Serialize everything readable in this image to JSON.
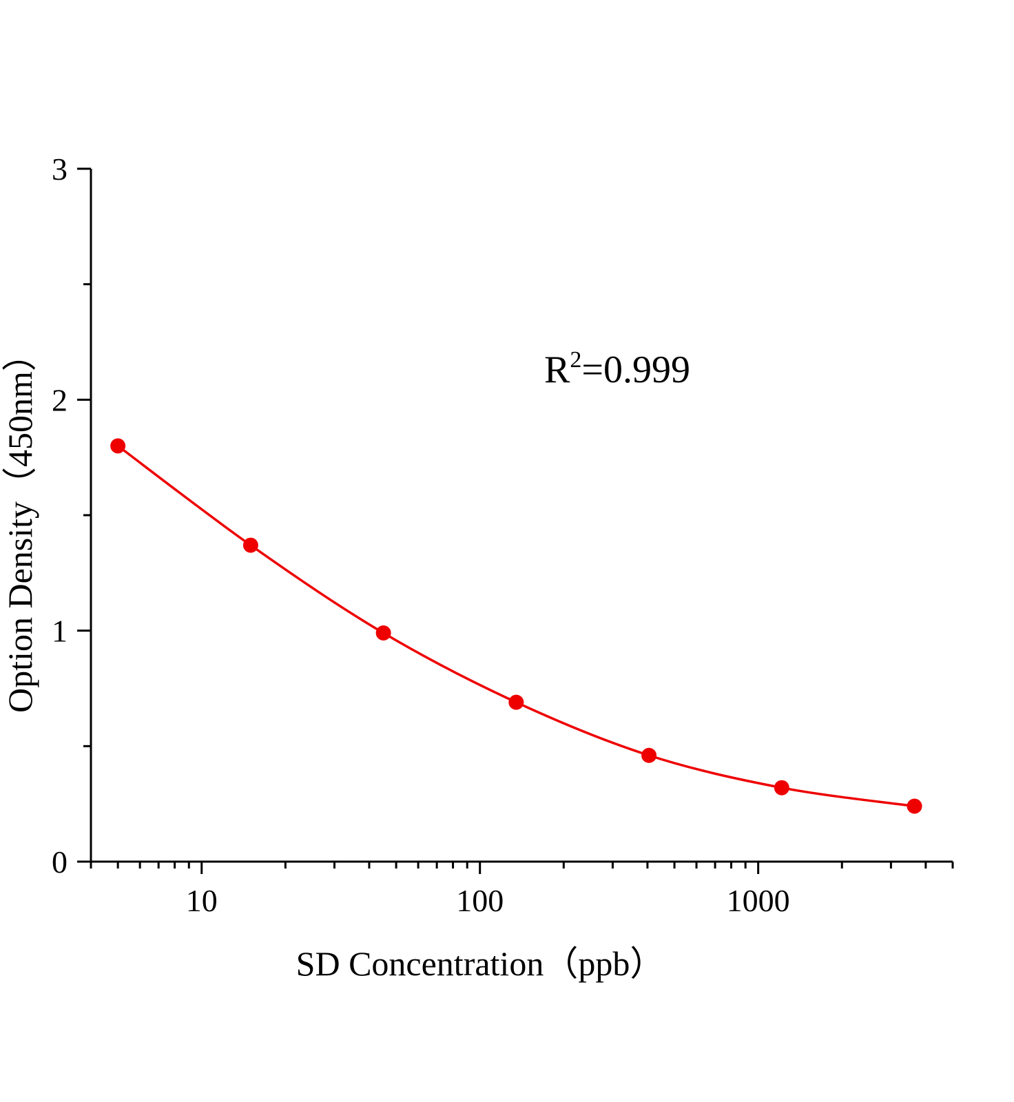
{
  "chart_data": {
    "type": "scatter",
    "title": "",
    "xlabel": "SD  Concentration（ppb）",
    "ylabel": "Option Density（450nm）",
    "xscale": "log",
    "xlim": [
      4,
      5000
    ],
    "ylim": [
      0,
      3
    ],
    "xticks": [
      10,
      100,
      1000
    ],
    "xtick_labels": [
      "10",
      "100",
      "1000"
    ],
    "yticks": [
      0,
      1,
      2,
      3
    ],
    "ytick_labels": [
      "0",
      "1",
      "2",
      "3"
    ],
    "grid": false,
    "annotation": {
      "prefix": "R",
      "sup": "2",
      "suffix": "=0.999"
    },
    "series": [
      {
        "x": [
          5,
          15,
          45,
          135,
          405,
          1215,
          3645
        ],
        "y": [
          1.8,
          1.37,
          0.99,
          0.69,
          0.46,
          0.32,
          0.24
        ],
        "color": "#ee0000",
        "marker": "circle",
        "line": "smooth fit"
      }
    ]
  }
}
